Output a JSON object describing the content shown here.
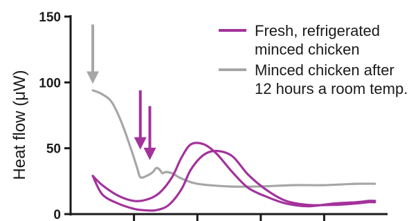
{
  "chart_data": {
    "type": "line",
    "xlabel": "",
    "ylabel": "Heat flow (μW)",
    "ylim": [
      0,
      150
    ],
    "xlim": [
      0,
      100
    ],
    "yticks": [
      0,
      50,
      100,
      150
    ],
    "yticklabels": [
      "0",
      "50",
      "100",
      "150"
    ],
    "xticks": [
      20,
      40,
      60,
      80
    ],
    "grid": false,
    "legend_position": "top-right",
    "series": [
      {
        "name": "Fresh, refrigerated minced chicken",
        "color": "#a3329b",
        "x": [
          7,
          10,
          15,
          20,
          23,
          27,
          31,
          35,
          38,
          42,
          46,
          51,
          56,
          62,
          68,
          75,
          83,
          90,
          94,
          96
        ],
        "values": [
          29,
          15,
          8,
          4,
          3,
          3,
          7,
          19,
          34,
          45,
          48,
          44,
          30,
          18,
          10,
          7,
          7,
          8,
          9,
          9
        ]
      },
      {
        "name": "Fresh, refrigerated minced chicken",
        "color": "#a3329b",
        "x": [
          7,
          10,
          15,
          20,
          24,
          28,
          32,
          35,
          38,
          42,
          46,
          51,
          56,
          62,
          68,
          75,
          83,
          90,
          94,
          96
        ],
        "values": [
          29,
          22,
          14,
          10,
          11,
          16,
          28,
          43,
          53,
          53,
          46,
          32,
          20,
          13,
          8,
          6,
          8,
          9,
          10,
          10
        ]
      },
      {
        "name": "Minced chicken after 12 hours a room temp.",
        "color": "#a6a6a6",
        "x": [
          7,
          10,
          13,
          16,
          19,
          21,
          22,
          24,
          26,
          27,
          28,
          29,
          30,
          32,
          35,
          40,
          50,
          60,
          70,
          80,
          90,
          96
        ],
        "values": [
          94,
          91,
          85,
          70,
          50,
          35,
          28,
          29,
          32,
          35,
          34,
          31,
          32,
          31,
          27,
          23,
          21,
          21,
          22,
          22,
          23,
          23
        ]
      }
    ],
    "annotations": [
      {
        "type": "arrow",
        "color": "#a6a6a6",
        "x": 7,
        "from_y": 144,
        "to_y": 100
      },
      {
        "type": "arrow",
        "color": "#a3329b",
        "x": 22,
        "from_y": 94,
        "to_y": 50
      },
      {
        "type": "arrow",
        "color": "#a3329b",
        "x": 25,
        "from_y": 82,
        "to_y": 42
      }
    ]
  },
  "legend": {
    "items": [
      {
        "lines": [
          "Fresh, refrigerated",
          "minced chicken"
        ],
        "color": "#a3329b"
      },
      {
        "lines": [
          "Minced chicken after",
          "12 hours a room temp."
        ],
        "color": "#a6a6a6"
      }
    ]
  }
}
